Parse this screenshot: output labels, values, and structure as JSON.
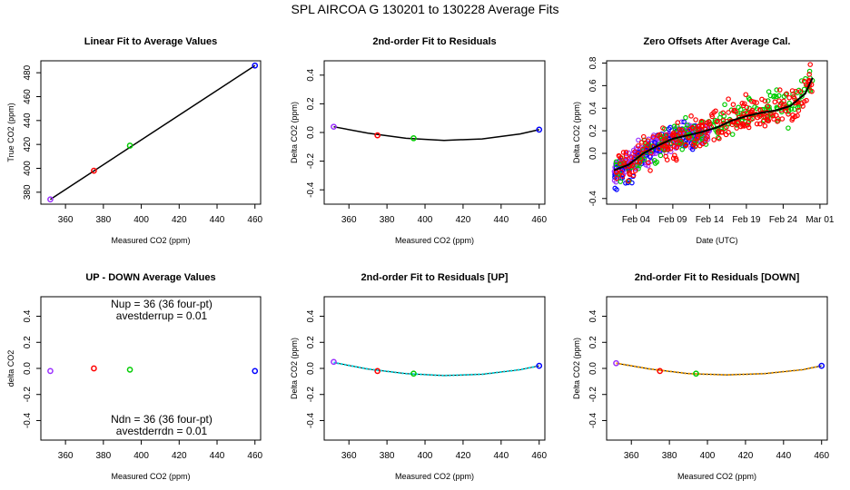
{
  "page_title": "SPL   AIRCOA G   130201 to 130228   Average Fits",
  "colors": {
    "purple": "#9b30ff",
    "red": "#ff0000",
    "green": "#00cc00",
    "blue": "#0000ff",
    "black": "#000000",
    "cyan": "#00e5ee",
    "orange": "#ffa500"
  },
  "chart_data": [
    {
      "id": "p1",
      "type": "scatter",
      "title": "Linear Fit to Average Values",
      "xlabel": "Measured CO2 (ppm)",
      "ylabel": "True CO2 (ppm)",
      "xlim": [
        347,
        463
      ],
      "ylim": [
        370,
        490
      ],
      "xticks": [
        360,
        380,
        400,
        420,
        440,
        460
      ],
      "yticks": [
        380,
        400,
        420,
        440,
        460,
        480
      ],
      "points": [
        {
          "x": 352,
          "y": 374,
          "color": "purple"
        },
        {
          "x": 375,
          "y": 398,
          "color": "red"
        },
        {
          "x": 394,
          "y": 419,
          "color": "green"
        },
        {
          "x": 460,
          "y": 486,
          "color": "blue"
        }
      ],
      "fit_line": {
        "x1": 352,
        "y1": 374,
        "x2": 460,
        "y2": 486,
        "color": "black"
      }
    },
    {
      "id": "p2",
      "type": "scatter",
      "title": "2nd-order Fit to Residuals",
      "xlabel": "Measured CO2 (ppm)",
      "ylabel": "Delta CO2 (ppm)",
      "xlim": [
        347,
        463
      ],
      "ylim": [
        -0.5,
        0.5
      ],
      "xticks": [
        360,
        380,
        400,
        420,
        440,
        460
      ],
      "yticks": [
        -0.4,
        -0.2,
        0.0,
        0.2,
        0.4
      ],
      "points": [
        {
          "x": 352,
          "y": 0.04,
          "color": "purple"
        },
        {
          "x": 375,
          "y": -0.02,
          "color": "red"
        },
        {
          "x": 394,
          "y": -0.04,
          "color": "green"
        },
        {
          "x": 460,
          "y": 0.02,
          "color": "blue"
        }
      ],
      "curve": {
        "x": [
          352,
          370,
          390,
          410,
          430,
          450,
          460
        ],
        "y": [
          0.04,
          -0.005,
          -0.04,
          -0.055,
          -0.045,
          -0.01,
          0.02
        ],
        "color": "black"
      }
    },
    {
      "id": "p3",
      "type": "line",
      "title": "Zero Offsets After Average Cal.",
      "xlabel": "Date (UTC)",
      "ylabel": "Delta CO2 (ppm)",
      "xlim": [
        "2013-01-31",
        "2013-03-02"
      ],
      "ylim": [
        -0.45,
        0.82
      ],
      "xticks": [
        {
          "date": "2013-02-04",
          "label": "Feb 04"
        },
        {
          "date": "2013-02-09",
          "label": "Feb 09"
        },
        {
          "date": "2013-02-14",
          "label": "Feb 14"
        },
        {
          "date": "2013-02-19",
          "label": "Feb 19"
        },
        {
          "date": "2013-02-24",
          "label": "Feb 24"
        },
        {
          "date": "2013-03-01",
          "label": "Mar 01"
        }
      ],
      "yticks": [
        -0.4,
        0.0,
        0.2,
        0.4,
        0.6,
        0.8
      ],
      "ytick_labels": [
        "-0.4",
        "0.0",
        "0.2",
        "0.4",
        "0.6",
        "0.8"
      ],
      "trend": {
        "dates": [
          "2013-02-01",
          "2013-02-03",
          "2013-02-05",
          "2013-02-07",
          "2013-02-09",
          "2013-02-11",
          "2013-02-13",
          "2013-02-15",
          "2013-02-17",
          "2013-02-19",
          "2013-02-21",
          "2013-02-23",
          "2013-02-25",
          "2013-02-27",
          "2013-02-28"
        ],
        "values": [
          -0.15,
          -0.1,
          0.0,
          0.07,
          0.13,
          0.16,
          0.19,
          0.23,
          0.29,
          0.33,
          0.36,
          0.38,
          0.42,
          0.53,
          0.67
        ],
        "color": "black"
      },
      "series": [
        {
          "color": "purple",
          "range": [
            "2013-02-01",
            "2013-02-14"
          ]
        },
        {
          "color": "blue",
          "range": [
            "2013-02-01",
            "2013-02-13"
          ]
        },
        {
          "color": "green",
          "range": [
            "2013-02-01",
            "2013-02-28"
          ]
        },
        {
          "color": "red",
          "range": [
            "2013-02-01",
            "2013-02-28"
          ]
        }
      ]
    },
    {
      "id": "p4",
      "type": "scatter",
      "title": "UP - DOWN Average Values",
      "xlabel": "Measured CO2 (ppm)",
      "ylabel": "delta CO2",
      "xlim": [
        347,
        463
      ],
      "ylim": [
        -0.55,
        0.55
      ],
      "xticks": [
        360,
        380,
        400,
        420,
        440,
        460
      ],
      "yticks": [
        -0.4,
        -0.2,
        0.0,
        0.2,
        0.4
      ],
      "points": [
        {
          "x": 352,
          "y": -0.02,
          "color": "purple"
        },
        {
          "x": 375,
          "y": 0.0,
          "color": "red"
        },
        {
          "x": 394,
          "y": -0.01,
          "color": "green"
        },
        {
          "x": 460,
          "y": -0.02,
          "color": "blue"
        }
      ],
      "annotations": {
        "top_line1": "Nup = 36 (36 four-pt)",
        "top_line2": "avestderrup =  0.01",
        "bottom_line1": "Ndn = 36 (36 four-pt)",
        "bottom_line2": "avestderrdn =  0.01"
      }
    },
    {
      "id": "p5",
      "type": "scatter",
      "title": "2nd-order Fit to Residuals [UP]",
      "xlabel": "Measured CO2 (ppm)",
      "ylabel": "Delta CO2 (ppm)",
      "xlim": [
        347,
        463
      ],
      "ylim": [
        -0.55,
        0.55
      ],
      "xticks": [
        360,
        380,
        400,
        420,
        440,
        460
      ],
      "yticks": [
        -0.4,
        -0.2,
        0.0,
        0.2,
        0.4
      ],
      "points": [
        {
          "x": 352,
          "y": 0.05,
          "color": "purple"
        },
        {
          "x": 375,
          "y": -0.02,
          "color": "red"
        },
        {
          "x": 394,
          "y": -0.04,
          "color": "green"
        },
        {
          "x": 460,
          "y": 0.02,
          "color": "blue"
        }
      ],
      "curve": {
        "x": [
          352,
          370,
          390,
          410,
          430,
          450,
          460
        ],
        "y": [
          0.045,
          -0.005,
          -0.04,
          -0.055,
          -0.045,
          -0.01,
          0.02
        ],
        "color": "cyan"
      }
    },
    {
      "id": "p6",
      "type": "scatter",
      "title": "2nd-order Fit to Residuals [DOWN]",
      "xlabel": "Measured CO2 (ppm)",
      "ylabel": "Delta CO2 (ppm)",
      "xlim": [
        347,
        463
      ],
      "ylim": [
        -0.55,
        0.55
      ],
      "xticks": [
        360,
        380,
        400,
        420,
        440,
        460
      ],
      "yticks": [
        -0.4,
        -0.2,
        0.0,
        0.2,
        0.4
      ],
      "points": [
        {
          "x": 352,
          "y": 0.04,
          "color": "purple"
        },
        {
          "x": 375,
          "y": -0.02,
          "color": "red"
        },
        {
          "x": 394,
          "y": -0.04,
          "color": "green"
        },
        {
          "x": 460,
          "y": 0.02,
          "color": "blue"
        }
      ],
      "curve": {
        "x": [
          352,
          370,
          390,
          410,
          430,
          450,
          460
        ],
        "y": [
          0.04,
          -0.005,
          -0.04,
          -0.05,
          -0.04,
          -0.01,
          0.02
        ],
        "color": "orange"
      }
    }
  ]
}
